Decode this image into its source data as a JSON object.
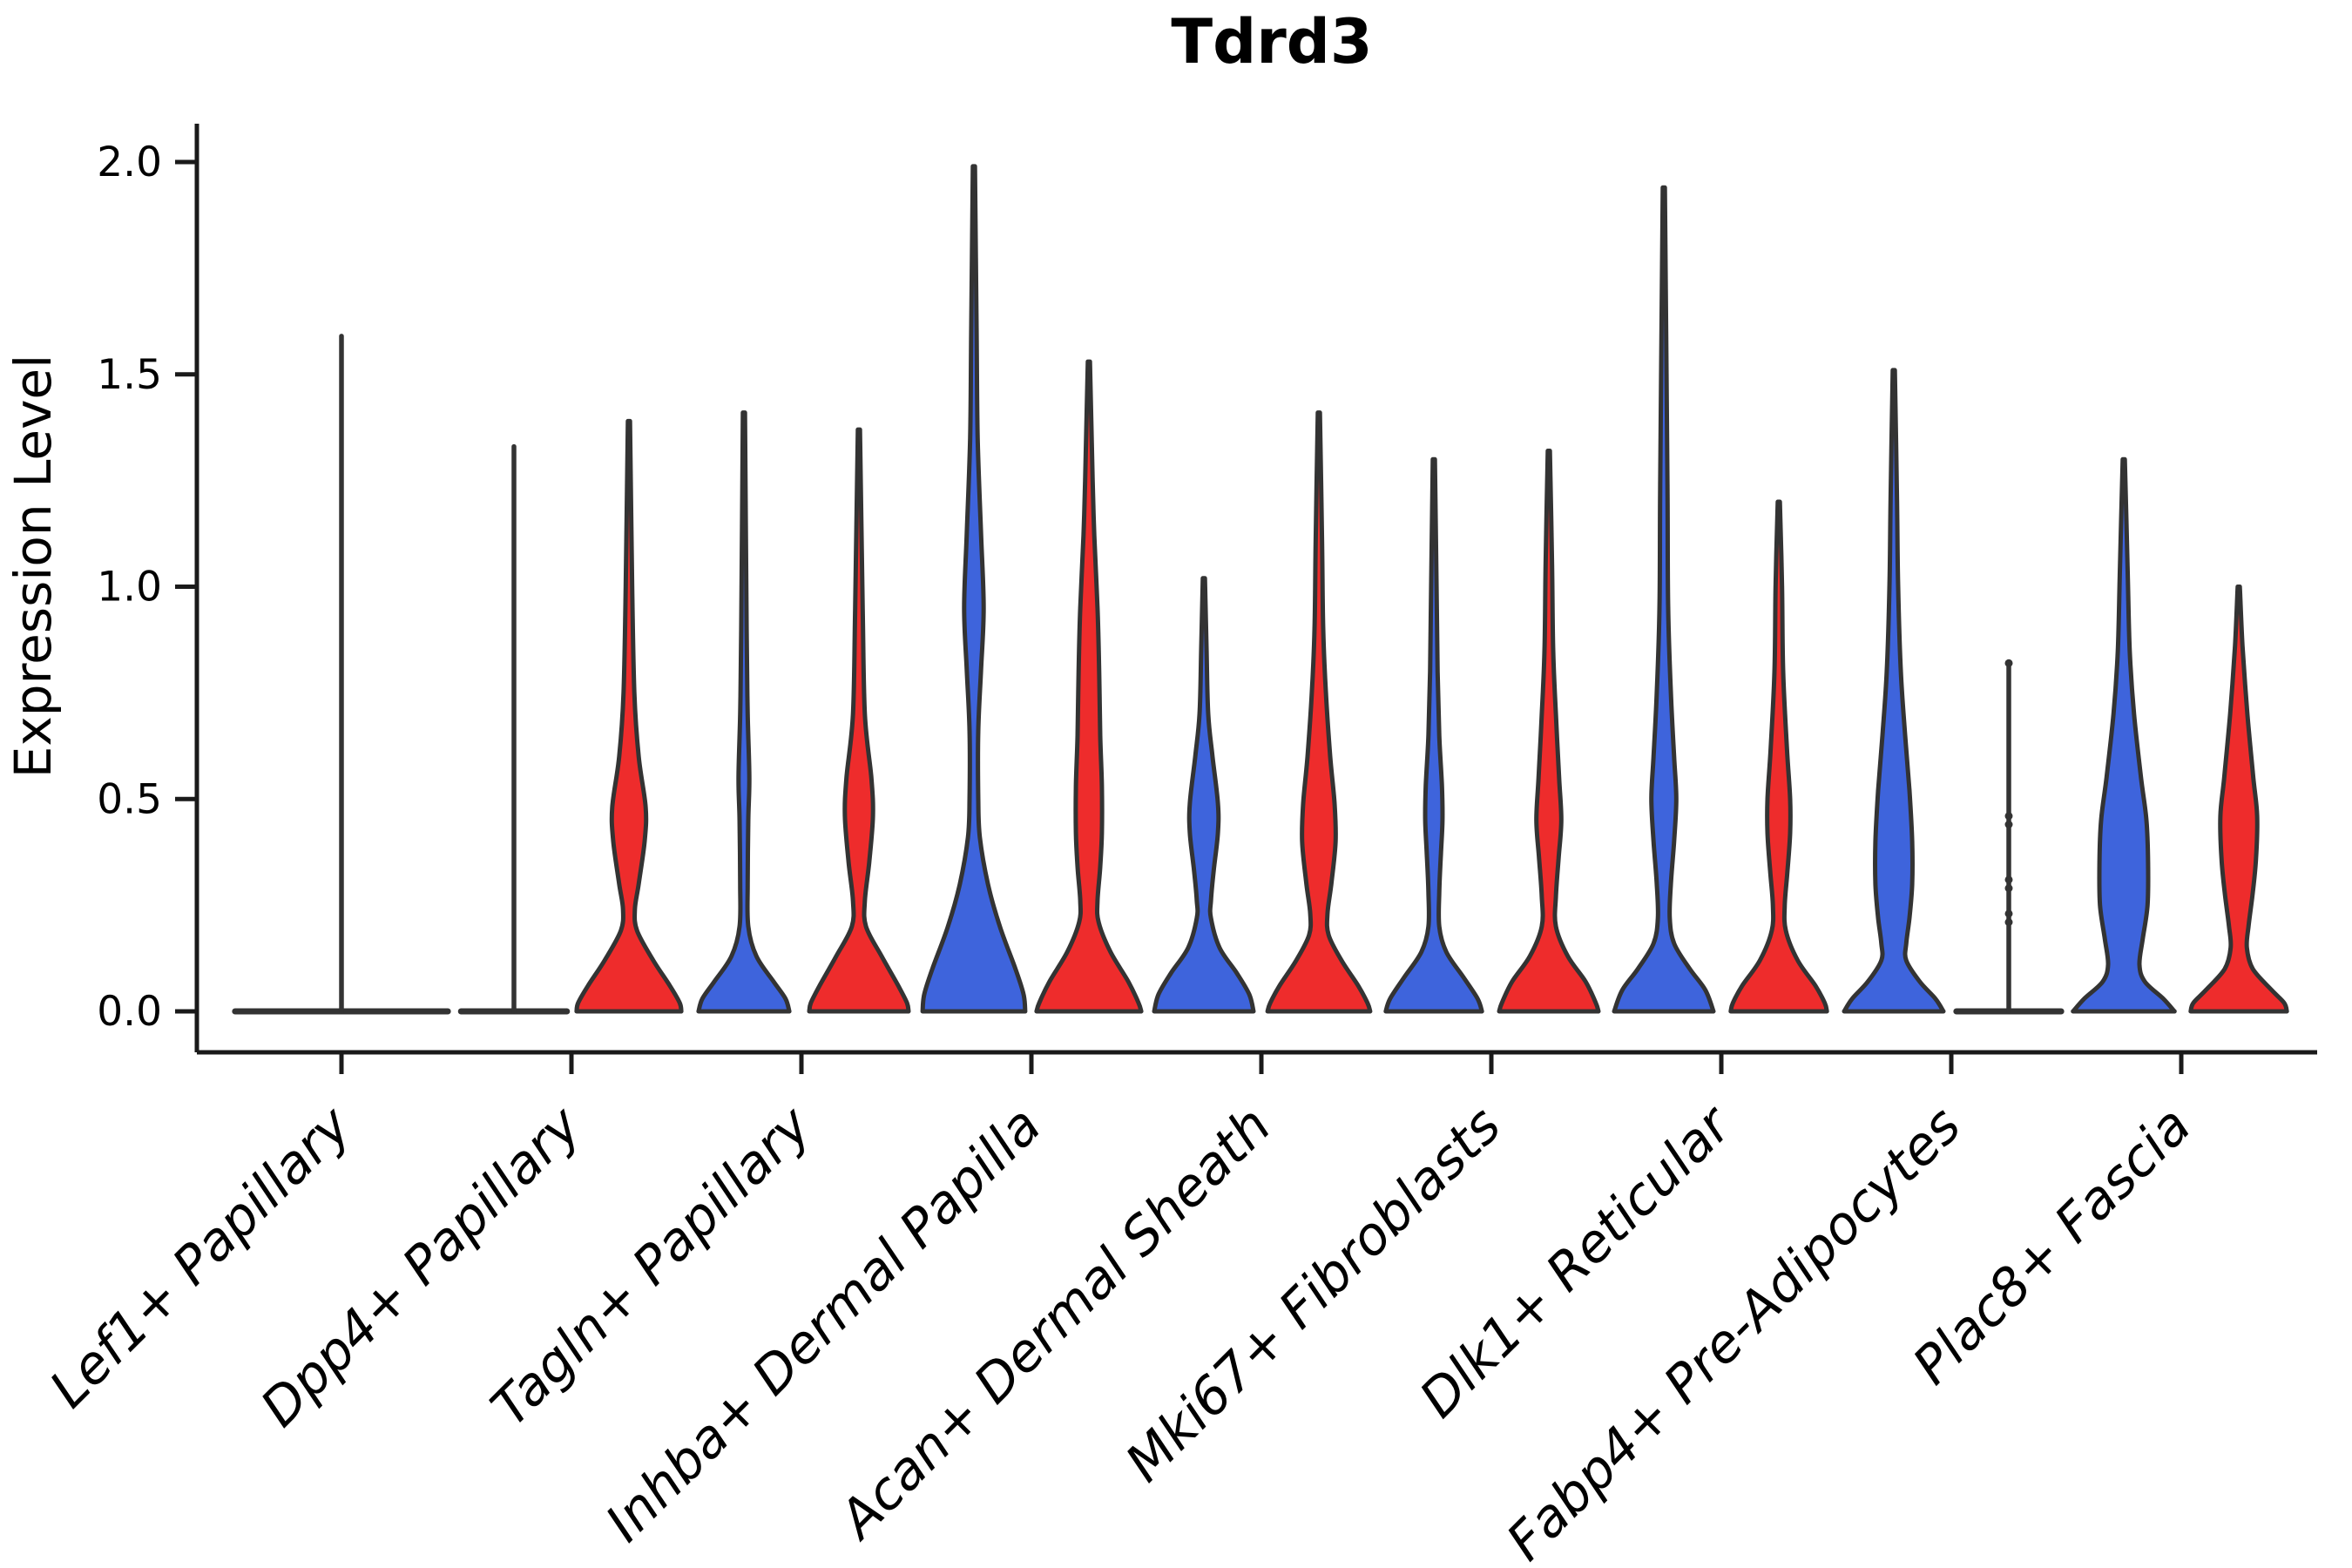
{
  "title": "Tdrd3",
  "colors": {
    "left_violin": "#3E64DC",
    "right_violin": "#EE2C2C",
    "outline": "#333333",
    "axis": "#1a1a1a",
    "collapsed_violin_fill": "#FFFFFF"
  },
  "chart_data": {
    "type": "violin",
    "title": "Tdrd3",
    "xlabel": "",
    "ylabel": "Expression Level",
    "ylim": [
      0,
      2.05
    ],
    "grid": false,
    "legend_position": "none",
    "x_tick_rotation": 45,
    "y_tick_labels": [
      "0.0",
      "0.5",
      "1.0",
      "1.5",
      "2.0"
    ],
    "y_tick_values": [
      0,
      0.5,
      1.0,
      1.5,
      2.0
    ],
    "categories": [
      "Lef1+ Papillary",
      "Dpp4+ Papillary",
      "Tagln+ Papillary",
      "Inhba+ Dermal Papilla",
      "Acan+ Dermal Sheath",
      "Mki67+ Fibroblasts",
      "Dlk1+ Reticular",
      "Fabp4+ Pre-Adipocytes",
      "Plac8+ Fascia"
    ],
    "violins": [
      {
        "category": "Lef1+ Papillary",
        "cat_index": 0,
        "side": "center",
        "style": "collapsed",
        "fill": "#FFFFFF",
        "max": 1.59,
        "base_halfwidth": 1.97,
        "dot_values": []
      },
      {
        "category": "Dpp4+ Papillary",
        "cat_index": 1,
        "side": "left",
        "style": "collapsed",
        "fill": "#3E64DC",
        "max": 1.33,
        "base_halfwidth": 0.98,
        "dot_values": []
      },
      {
        "category": "Dpp4+ Papillary",
        "cat_index": 1,
        "side": "right",
        "style": "density",
        "fill": "#EE2C2C",
        "max": 1.39,
        "profile": [
          [
            1.39,
            0.02
          ],
          [
            1.0,
            0.06
          ],
          [
            0.75,
            0.1
          ],
          [
            0.6,
            0.18
          ],
          [
            0.48,
            0.31
          ],
          [
            0.4,
            0.29
          ],
          [
            0.3,
            0.18
          ],
          [
            0.24,
            0.11
          ],
          [
            0.19,
            0.15
          ],
          [
            0.12,
            0.45
          ],
          [
            0.06,
            0.76
          ],
          [
            0.02,
            0.94
          ],
          [
            0,
            0.97
          ]
        ]
      },
      {
        "category": "Tagln+ Papillary",
        "cat_index": 2,
        "side": "left",
        "style": "density",
        "fill": "#3E64DC",
        "max": 1.41,
        "profile": [
          [
            1.41,
            0.02
          ],
          [
            0.9,
            0.05
          ],
          [
            0.7,
            0.07
          ],
          [
            0.55,
            0.1
          ],
          [
            0.45,
            0.08
          ],
          [
            0.3,
            0.07
          ],
          [
            0.2,
            0.08
          ],
          [
            0.13,
            0.23
          ],
          [
            0.07,
            0.55
          ],
          [
            0.03,
            0.77
          ],
          [
            0,
            0.84
          ]
        ]
      },
      {
        "category": "Tagln+ Papillary",
        "cat_index": 2,
        "side": "right",
        "style": "density",
        "fill": "#EE2C2C",
        "max": 1.37,
        "profile": [
          [
            1.37,
            0.02
          ],
          [
            0.95,
            0.07
          ],
          [
            0.7,
            0.11
          ],
          [
            0.55,
            0.23
          ],
          [
            0.46,
            0.26
          ],
          [
            0.35,
            0.19
          ],
          [
            0.26,
            0.11
          ],
          [
            0.2,
            0.13
          ],
          [
            0.13,
            0.42
          ],
          [
            0.06,
            0.73
          ],
          [
            0.02,
            0.89
          ],
          [
            0,
            0.92
          ]
        ]
      },
      {
        "category": "Inhba+ Dermal Papilla",
        "cat_index": 3,
        "side": "left",
        "style": "density",
        "fill": "#3E64DC",
        "max": 1.99,
        "profile": [
          [
            1.99,
            0.02
          ],
          [
            1.6,
            0.05
          ],
          [
            1.35,
            0.07
          ],
          [
            1.13,
            0.13
          ],
          [
            0.95,
            0.18
          ],
          [
            0.8,
            0.13
          ],
          [
            0.66,
            0.08
          ],
          [
            0.5,
            0.08
          ],
          [
            0.41,
            0.11
          ],
          [
            0.3,
            0.26
          ],
          [
            0.2,
            0.48
          ],
          [
            0.1,
            0.77
          ],
          [
            0.04,
            0.92
          ],
          [
            0,
            0.95
          ]
        ]
      },
      {
        "category": "Inhba+ Dermal Papilla",
        "cat_index": 3,
        "side": "right",
        "style": "density",
        "fill": "#EE2C2C",
        "max": 1.53,
        "profile": [
          [
            1.53,
            0.02
          ],
          [
            1.25,
            0.07
          ],
          [
            1.12,
            0.1
          ],
          [
            0.95,
            0.16
          ],
          [
            0.8,
            0.19
          ],
          [
            0.65,
            0.21
          ],
          [
            0.53,
            0.24
          ],
          [
            0.42,
            0.24
          ],
          [
            0.34,
            0.21
          ],
          [
            0.26,
            0.16
          ],
          [
            0.21,
            0.18
          ],
          [
            0.14,
            0.4
          ],
          [
            0.07,
            0.73
          ],
          [
            0.02,
            0.92
          ],
          [
            0,
            0.97
          ]
        ]
      },
      {
        "category": "Acan+ Dermal Sheath",
        "cat_index": 4,
        "side": "left",
        "style": "density",
        "fill": "#3E64DC",
        "max": 1.02,
        "profile": [
          [
            1.02,
            0.02
          ],
          [
            0.85,
            0.05
          ],
          [
            0.7,
            0.08
          ],
          [
            0.6,
            0.16
          ],
          [
            0.49,
            0.26
          ],
          [
            0.42,
            0.26
          ],
          [
            0.33,
            0.18
          ],
          [
            0.26,
            0.13
          ],
          [
            0.22,
            0.13
          ],
          [
            0.15,
            0.29
          ],
          [
            0.09,
            0.61
          ],
          [
            0.04,
            0.84
          ],
          [
            0,
            0.92
          ]
        ]
      },
      {
        "category": "Acan+ Dermal Sheath",
        "cat_index": 4,
        "side": "right",
        "style": "density",
        "fill": "#EE2C2C",
        "max": 1.41,
        "profile": [
          [
            1.41,
            0.02
          ],
          [
            1.1,
            0.06
          ],
          [
            0.9,
            0.08
          ],
          [
            0.75,
            0.13
          ],
          [
            0.6,
            0.21
          ],
          [
            0.49,
            0.29
          ],
          [
            0.4,
            0.31
          ],
          [
            0.3,
            0.23
          ],
          [
            0.23,
            0.16
          ],
          [
            0.18,
            0.18
          ],
          [
            0.12,
            0.42
          ],
          [
            0.06,
            0.73
          ],
          [
            0.02,
            0.9
          ],
          [
            0,
            0.95
          ]
        ]
      },
      {
        "category": "Mki67+ Fibroblasts",
        "cat_index": 5,
        "side": "left",
        "style": "density",
        "fill": "#3E64DC",
        "max": 1.3,
        "profile": [
          [
            1.3,
            0.02
          ],
          [
            1.0,
            0.05
          ],
          [
            0.8,
            0.07
          ],
          [
            0.65,
            0.1
          ],
          [
            0.53,
            0.15
          ],
          [
            0.45,
            0.16
          ],
          [
            0.37,
            0.13
          ],
          [
            0.28,
            0.1
          ],
          [
            0.2,
            0.1
          ],
          [
            0.14,
            0.23
          ],
          [
            0.08,
            0.55
          ],
          [
            0.03,
            0.81
          ],
          [
            0,
            0.89
          ]
        ]
      },
      {
        "category": "Mki67+ Fibroblasts",
        "cat_index": 5,
        "side": "right",
        "style": "density",
        "fill": "#EE2C2C",
        "max": 1.32,
        "profile": [
          [
            1.32,
            0.02
          ],
          [
            1.05,
            0.06
          ],
          [
            0.85,
            0.08
          ],
          [
            0.7,
            0.13
          ],
          [
            0.55,
            0.19
          ],
          [
            0.45,
            0.23
          ],
          [
            0.36,
            0.18
          ],
          [
            0.27,
            0.13
          ],
          [
            0.2,
            0.13
          ],
          [
            0.13,
            0.35
          ],
          [
            0.07,
            0.68
          ],
          [
            0.02,
            0.87
          ],
          [
            0,
            0.92
          ]
        ]
      },
      {
        "category": "Dlk1+ Reticular",
        "cat_index": 6,
        "side": "left",
        "style": "density",
        "fill": "#3E64DC",
        "max": 1.94,
        "profile": [
          [
            1.94,
            0.02
          ],
          [
            1.5,
            0.05
          ],
          [
            1.2,
            0.07
          ],
          [
            0.95,
            0.08
          ],
          [
            0.75,
            0.13
          ],
          [
            0.6,
            0.19
          ],
          [
            0.5,
            0.23
          ],
          [
            0.4,
            0.19
          ],
          [
            0.3,
            0.13
          ],
          [
            0.22,
            0.11
          ],
          [
            0.16,
            0.19
          ],
          [
            0.1,
            0.48
          ],
          [
            0.05,
            0.77
          ],
          [
            0,
            0.92
          ]
        ]
      },
      {
        "category": "Dlk1+ Reticular",
        "cat_index": 6,
        "side": "right",
        "style": "density",
        "fill": "#EE2C2C",
        "max": 1.2,
        "profile": [
          [
            1.2,
            0.02
          ],
          [
            1.0,
            0.06
          ],
          [
            0.8,
            0.08
          ],
          [
            0.62,
            0.15
          ],
          [
            0.5,
            0.21
          ],
          [
            0.42,
            0.21
          ],
          [
            0.33,
            0.16
          ],
          [
            0.25,
            0.11
          ],
          [
            0.19,
            0.13
          ],
          [
            0.12,
            0.35
          ],
          [
            0.06,
            0.68
          ],
          [
            0.02,
            0.85
          ],
          [
            0,
            0.89
          ]
        ]
      },
      {
        "category": "Fabp4+ Pre-Adipocytes",
        "cat_index": 7,
        "side": "left",
        "style": "density",
        "fill": "#3E64DC",
        "max": 1.51,
        "profile": [
          [
            1.51,
            0.02
          ],
          [
            1.2,
            0.06
          ],
          [
            1.0,
            0.08
          ],
          [
            0.8,
            0.13
          ],
          [
            0.65,
            0.21
          ],
          [
            0.52,
            0.29
          ],
          [
            0.4,
            0.34
          ],
          [
            0.3,
            0.34
          ],
          [
            0.22,
            0.29
          ],
          [
            0.16,
            0.23
          ],
          [
            0.12,
            0.23
          ],
          [
            0.07,
            0.48
          ],
          [
            0.03,
            0.77
          ],
          [
            0,
            0.92
          ]
        ]
      },
      {
        "category": "Fabp4+ Pre-Adipocytes",
        "cat_index": 7,
        "side": "right",
        "style": "collapsed",
        "fill": "#EE2C2C",
        "max": 0.82,
        "base_halfwidth": 0.97,
        "dot_values": [
          0.82,
          0.46,
          0.44,
          0.31,
          0.29,
          0.23,
          0.21
        ]
      },
      {
        "category": "Plac8+ Fascia",
        "cat_index": 8,
        "side": "left",
        "style": "density",
        "fill": "#3E64DC",
        "max": 1.3,
        "profile": [
          [
            1.3,
            0.02
          ],
          [
            1.05,
            0.07
          ],
          [
            0.85,
            0.11
          ],
          [
            0.7,
            0.19
          ],
          [
            0.55,
            0.32
          ],
          [
            0.45,
            0.42
          ],
          [
            0.35,
            0.45
          ],
          [
            0.25,
            0.44
          ],
          [
            0.17,
            0.35
          ],
          [
            0.11,
            0.29
          ],
          [
            0.07,
            0.39
          ],
          [
            0.03,
            0.73
          ],
          [
            0,
            0.94
          ]
        ]
      },
      {
        "category": "Plac8+ Fascia",
        "cat_index": 8,
        "side": "right",
        "style": "density",
        "fill": "#EE2C2C",
        "max": 1.0,
        "profile": [
          [
            1.0,
            0.02
          ],
          [
            0.86,
            0.07
          ],
          [
            0.7,
            0.16
          ],
          [
            0.55,
            0.27
          ],
          [
            0.46,
            0.34
          ],
          [
            0.36,
            0.32
          ],
          [
            0.28,
            0.26
          ],
          [
            0.2,
            0.18
          ],
          [
            0.15,
            0.15
          ],
          [
            0.1,
            0.26
          ],
          [
            0.05,
            0.61
          ],
          [
            0.02,
            0.84
          ],
          [
            0,
            0.89
          ]
        ]
      }
    ]
  }
}
